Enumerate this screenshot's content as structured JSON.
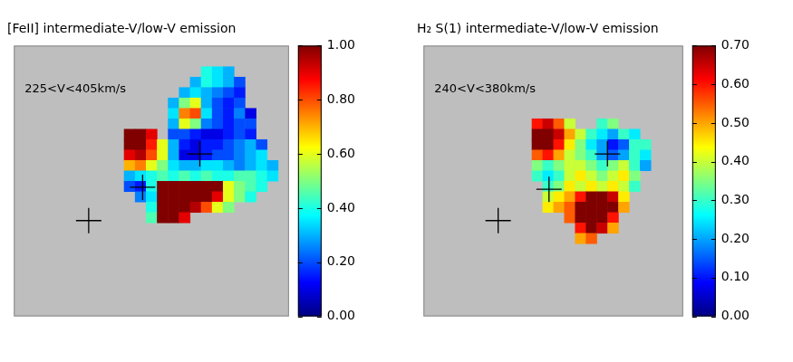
{
  "chart_data": [
    {
      "type": "heatmap",
      "title": "[FeII] intermediate-V/low-V emission",
      "annotation": "225<V<405km/s",
      "tick_labels": false,
      "xlim": [
        0,
        25
      ],
      "ylim": [
        0,
        26
      ],
      "x_edges": [
        10,
        11,
        12,
        13,
        14,
        15,
        16,
        17,
        18,
        19,
        20,
        21,
        22,
        23,
        24
      ],
      "y_edges": [
        2,
        3,
        4,
        5,
        6,
        7,
        8,
        9,
        10,
        11,
        12,
        13,
        14,
        15,
        16,
        17
      ],
      "z": [
        [
          null,
          null,
          null,
          null,
          null,
          null,
          null,
          0.4,
          0.35,
          0.3,
          null,
          null,
          null,
          null
        ],
        [
          null,
          null,
          null,
          null,
          null,
          null,
          0.3,
          0.4,
          0.35,
          0.3,
          0.2,
          null,
          null,
          null
        ],
        [
          null,
          null,
          null,
          null,
          null,
          0.3,
          0.35,
          0.3,
          0.25,
          0.2,
          0.15,
          null,
          null,
          null
        ],
        [
          null,
          null,
          null,
          null,
          0.3,
          0.5,
          0.6,
          0.3,
          0.2,
          0.15,
          0.2,
          null,
          null,
          null
        ],
        [
          null,
          null,
          null,
          null,
          0.35,
          0.75,
          0.8,
          0.35,
          0.2,
          0.15,
          0.25,
          0.1,
          null,
          null
        ],
        [
          null,
          null,
          null,
          null,
          0.3,
          0.6,
          0.5,
          0.25,
          0.2,
          0.15,
          0.2,
          0.2,
          null,
          null
        ],
        [
          1,
          1,
          0.9,
          null,
          0.2,
          0.2,
          0.15,
          0.1,
          0.1,
          0.15,
          0.2,
          0.15,
          null,
          null
        ],
        [
          1,
          1,
          0.85,
          0.6,
          0.3,
          0.15,
          0.1,
          0.15,
          0.15,
          0.2,
          0.25,
          0.3,
          0.2,
          null
        ],
        [
          0.9,
          0.95,
          0.8,
          0.6,
          0.3,
          0.1,
          0.1,
          0.15,
          0.2,
          0.2,
          0.25,
          0.3,
          0.35,
          null
        ],
        [
          0.7,
          0.75,
          0.6,
          0.5,
          0.35,
          0.3,
          0.3,
          0.35,
          0.35,
          0.3,
          0.25,
          0.3,
          0.35,
          0.3
        ],
        [
          0.3,
          0.35,
          0.4,
          0.45,
          0.4,
          0.45,
          0.4,
          0.45,
          0.4,
          0.4,
          0.45,
          0.45,
          0.4,
          0.35
        ],
        [
          0.2,
          0.15,
          0.4,
          1,
          1,
          1,
          1,
          1,
          1,
          0.6,
          0.5,
          0.45,
          0.4,
          null
        ],
        [
          null,
          0.25,
          0.35,
          1,
          1,
          1,
          1,
          1,
          0.9,
          0.6,
          0.5,
          0.4,
          null,
          null
        ],
        [
          null,
          null,
          0.4,
          1,
          1,
          1,
          0.95,
          0.8,
          0.6,
          0.5,
          null,
          null,
          null,
          null
        ],
        [
          null,
          null,
          0.45,
          1,
          1,
          0.9,
          null,
          null,
          null,
          null,
          null,
          null,
          null,
          null
        ]
      ],
      "marker": "cross",
      "markers": [
        {
          "x": 6.8,
          "y": 16.8
        },
        {
          "x": 11.7,
          "y": 13.6
        },
        {
          "x": 16.9,
          "y": 10.4
        }
      ],
      "colorbar": {
        "range": [
          0,
          1
        ],
        "ticks": [
          {
            "value": 0,
            "label": "0.00"
          },
          {
            "value": 0.2,
            "label": "0.20"
          },
          {
            "value": 0.4,
            "label": "0.40"
          },
          {
            "value": 0.6,
            "label": "0.60"
          },
          {
            "value": 0.8,
            "label": "0.80"
          },
          {
            "value": 1,
            "label": "1.00"
          }
        ]
      }
    },
    {
      "type": "heatmap",
      "title": "H₂ S(1) intermediate-V/low-V emission",
      "annotation": "240<V<380km/s",
      "tick_labels": false,
      "xlim": [
        0,
        24
      ],
      "ylim": [
        0,
        26
      ],
      "x_edges": [
        10,
        11,
        12,
        13,
        14,
        15,
        16,
        17,
        18,
        19,
        20,
        21
      ],
      "y_edges": [
        7,
        8,
        9,
        10,
        11,
        12,
        13,
        14,
        15,
        16,
        17,
        18,
        19
      ],
      "z": [
        [
          0.6,
          0.65,
          0.55,
          0.4,
          null,
          null,
          0.3,
          0.35,
          null,
          null,
          null
        ],
        [
          0.7,
          0.7,
          0.65,
          0.5,
          0.4,
          0.3,
          0.25,
          0.2,
          0.3,
          0.25,
          null
        ],
        [
          0.7,
          0.7,
          0.6,
          0.45,
          0.35,
          0.25,
          0.2,
          0.1,
          0.15,
          0.3,
          0.3
        ],
        [
          0.55,
          0.6,
          0.5,
          0.4,
          0.35,
          0.3,
          0.2,
          0.15,
          0.2,
          0.3,
          0.25
        ],
        [
          0.35,
          0.3,
          0.35,
          0.4,
          0.4,
          0.35,
          0.3,
          0.35,
          0.4,
          0.3,
          0.2
        ],
        [
          0.3,
          0.25,
          0.3,
          0.4,
          0.45,
          0.4,
          0.35,
          0.4,
          0.45,
          0.35,
          null
        ],
        [
          null,
          0.3,
          0.35,
          0.45,
          0.4,
          0.45,
          0.4,
          0.45,
          0.4,
          0.3,
          null
        ],
        [
          null,
          0.4,
          0.45,
          0.5,
          0.6,
          0.7,
          0.7,
          0.65,
          0.45,
          null,
          null
        ],
        [
          null,
          0.45,
          0.5,
          0.55,
          0.7,
          0.7,
          0.7,
          0.7,
          0.5,
          null,
          null
        ],
        [
          null,
          null,
          null,
          0.55,
          0.7,
          0.7,
          0.7,
          0.6,
          null,
          null,
          null
        ],
        [
          null,
          null,
          null,
          null,
          0.6,
          0.7,
          0.65,
          0.5,
          null,
          null,
          null
        ],
        [
          null,
          null,
          null,
          null,
          0.5,
          0.55,
          null,
          null,
          null,
          null,
          null
        ]
      ],
      "marker": "cross",
      "markers": [
        {
          "x": 6.9,
          "y": 16.8
        },
        {
          "x": 11.6,
          "y": 13.8
        },
        {
          "x": 17.0,
          "y": 10.4
        }
      ],
      "colorbar": {
        "range": [
          0,
          0.7
        ],
        "ticks": [
          {
            "value": 0,
            "label": "0.00"
          },
          {
            "value": 0.1,
            "label": "0.10"
          },
          {
            "value": 0.2,
            "label": "0.20"
          },
          {
            "value": 0.3,
            "label": "0.30"
          },
          {
            "value": 0.4,
            "label": "0.40"
          },
          {
            "value": 0.5,
            "label": "0.50"
          },
          {
            "value": 0.6,
            "label": "0.60"
          },
          {
            "value": 0.7,
            "label": "0.70"
          }
        ]
      }
    }
  ]
}
